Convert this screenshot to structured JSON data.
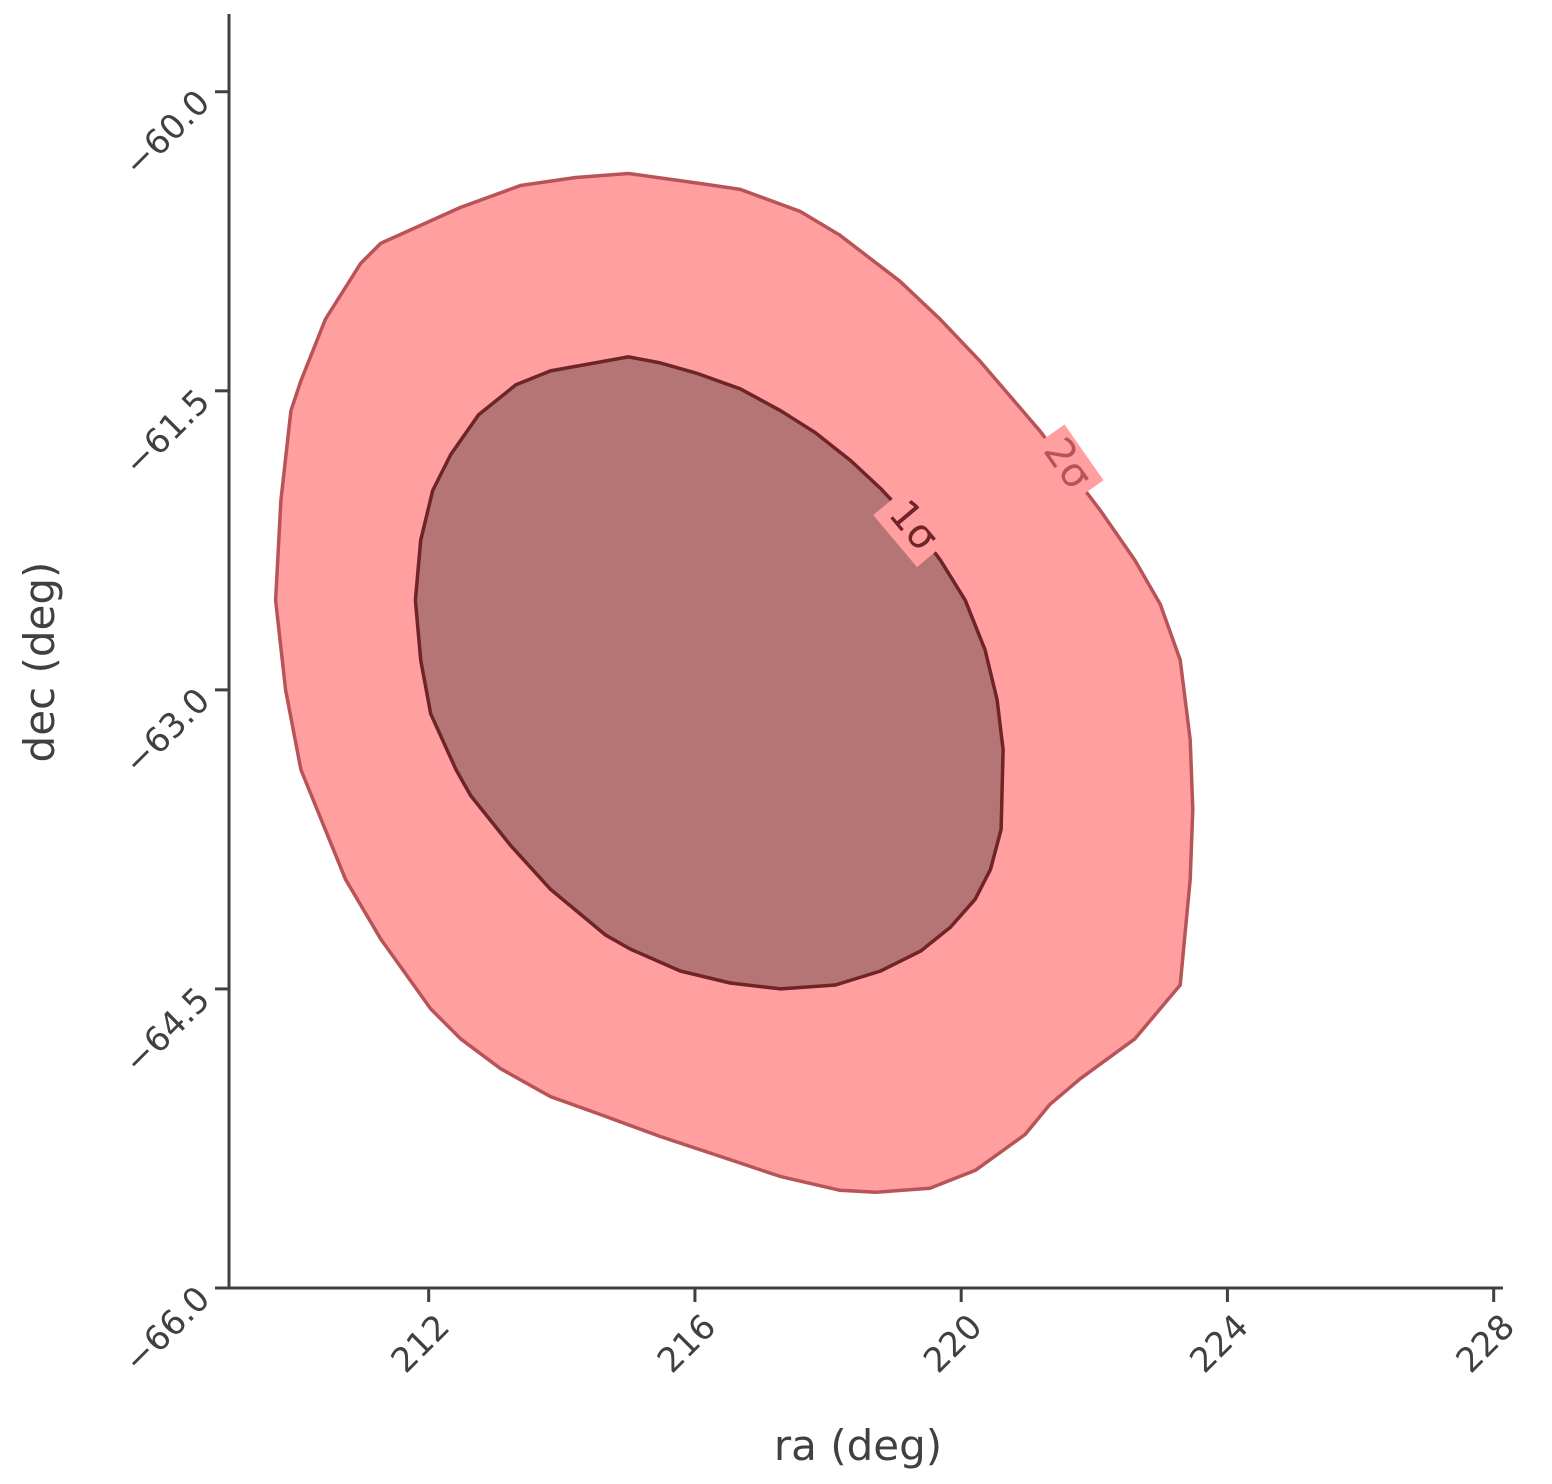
{
  "chart_data": {
    "type": "contour",
    "x_label": "ra (deg)",
    "y_label": "dec (deg)",
    "xlim": [
      209.0,
      228.14
    ],
    "ylim": [
      -66.0,
      -59.61
    ],
    "xticks": [
      212,
      216,
      220,
      224,
      228
    ],
    "yticks": [
      {
        "value": -60,
        "label": "−60.0"
      },
      {
        "value": -61.5,
        "label": "−61.5"
      },
      {
        "value": -63,
        "label": "−63.0"
      },
      {
        "value": -64.5,
        "label": "−64.5"
      },
      {
        "value": -66,
        "label": "−66.0"
      }
    ],
    "series": [
      {
        "name": "2σ",
        "color": "#ff9f9f",
        "edge_color": "#b85458",
        "x": [
          215.0,
          216.08,
          216.68,
          217.58,
          218.18,
          219.08,
          219.68,
          220.28,
          221.18,
          222.09,
          222.61,
          222.99,
          223.29,
          223.44,
          223.48,
          223.44,
          223.29,
          222.61,
          221.79,
          221.33,
          220.96,
          220.21,
          219.53,
          218.71,
          218.18,
          217.28,
          216.38,
          215.48,
          214.58,
          213.83,
          213.08,
          212.48,
          212.03,
          211.28,
          210.75,
          210.08,
          209.85,
          209.7,
          209.78,
          209.93,
          210.08,
          210.45,
          210.98,
          211.28,
          212.48,
          213.38,
          214.21
        ],
        "y": [
          -60.41,
          -60.46,
          -60.49,
          -60.6,
          -60.72,
          -60.95,
          -61.14,
          -61.35,
          -61.7,
          -62.1,
          -62.35,
          -62.57,
          -62.85,
          -63.25,
          -63.6,
          -63.95,
          -64.48,
          -64.75,
          -64.95,
          -65.08,
          -65.23,
          -65.41,
          -65.5,
          -65.52,
          -65.51,
          -65.44,
          -65.34,
          -65.24,
          -65.13,
          -65.04,
          -64.9,
          -64.75,
          -64.6,
          -64.25,
          -63.95,
          -63.4,
          -63.0,
          -62.55,
          -62.05,
          -61.6,
          -61.45,
          -61.14,
          -60.86,
          -60.76,
          -60.58,
          -60.47,
          -60.43
        ]
      },
      {
        "name": "1σ",
        "color": "#b57575",
        "edge_color": "#6e2428",
        "x": [
          215.0,
          215.48,
          216.01,
          216.68,
          217.29,
          217.81,
          218.34,
          218.79,
          219.24,
          219.69,
          220.06,
          220.36,
          220.54,
          220.63,
          220.6,
          220.44,
          220.21,
          219.84,
          219.39,
          218.79,
          218.11,
          217.29,
          216.53,
          215.78,
          215.03,
          214.66,
          213.83,
          213.23,
          212.63,
          212.41,
          212.03,
          211.88,
          211.8,
          211.88,
          212.06,
          212.33,
          212.75,
          213.31,
          213.83
        ],
        "y": [
          -61.33,
          -61.36,
          -61.41,
          -61.49,
          -61.6,
          -61.71,
          -61.85,
          -61.99,
          -62.15,
          -62.35,
          -62.55,
          -62.8,
          -63.05,
          -63.3,
          -63.7,
          -63.9,
          -64.05,
          -64.19,
          -64.31,
          -64.41,
          -64.48,
          -64.5,
          -64.47,
          -64.41,
          -64.3,
          -64.23,
          -64.0,
          -63.78,
          -63.53,
          -63.4,
          -63.12,
          -62.85,
          -62.55,
          -62.25,
          -62.0,
          -61.82,
          -61.62,
          -61.47,
          -61.4
        ]
      }
    ]
  }
}
